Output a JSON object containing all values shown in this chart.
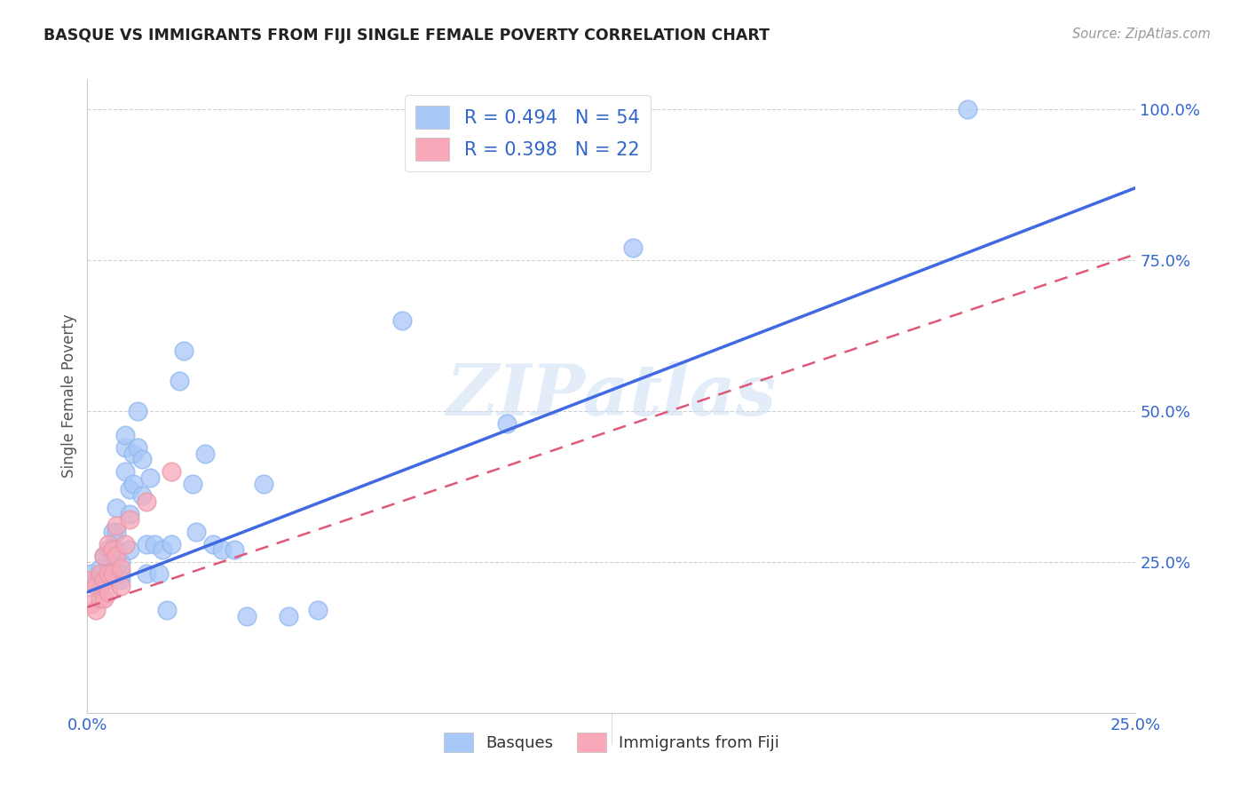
{
  "title": "BASQUE VS IMMIGRANTS FROM FIJI SINGLE FEMALE POVERTY CORRELATION CHART",
  "source": "Source: ZipAtlas.com",
  "ylabel": "Single Female Poverty",
  "xlim": [
    0.0,
    0.25
  ],
  "ylim": [
    0.0,
    1.05
  ],
  "x_ticks": [
    0.0,
    0.05,
    0.1,
    0.15,
    0.2,
    0.25
  ],
  "x_tick_labels": [
    "0.0%",
    "",
    "",
    "",
    "",
    "25.0%"
  ],
  "y_tick_labels": [
    "25.0%",
    "50.0%",
    "75.0%",
    "100.0%"
  ],
  "y_ticks": [
    0.25,
    0.5,
    0.75,
    1.0
  ],
  "legend1_label": "R = 0.494   N = 54",
  "legend2_label": "R = 0.398   N = 22",
  "legend_label_bottom1": "Basques",
  "legend_label_bottom2": "Immigrants from Fiji",
  "basque_color": "#a8c8f8",
  "fiji_color": "#f8a8b8",
  "basque_line_color": "#4169e1",
  "fiji_line_color": "#e05878",
  "watermark": "ZIPatlas",
  "basque_x": [
    0.001,
    0.002,
    0.003,
    0.003,
    0.004,
    0.004,
    0.005,
    0.005,
    0.005,
    0.006,
    0.006,
    0.006,
    0.007,
    0.007,
    0.007,
    0.008,
    0.008,
    0.008,
    0.009,
    0.009,
    0.009,
    0.01,
    0.01,
    0.01,
    0.011,
    0.011,
    0.012,
    0.012,
    0.013,
    0.013,
    0.014,
    0.014,
    0.015,
    0.016,
    0.017,
    0.018,
    0.019,
    0.02,
    0.022,
    0.023,
    0.025,
    0.026,
    0.028,
    0.03,
    0.032,
    0.035,
    0.038,
    0.042,
    0.048,
    0.055,
    0.075,
    0.1,
    0.13,
    0.21
  ],
  "basque_y": [
    0.23,
    0.22,
    0.24,
    0.21,
    0.26,
    0.23,
    0.27,
    0.24,
    0.22,
    0.3,
    0.27,
    0.24,
    0.34,
    0.3,
    0.27,
    0.25,
    0.23,
    0.22,
    0.44,
    0.4,
    0.46,
    0.37,
    0.33,
    0.27,
    0.43,
    0.38,
    0.5,
    0.44,
    0.42,
    0.36,
    0.28,
    0.23,
    0.39,
    0.28,
    0.23,
    0.27,
    0.17,
    0.28,
    0.55,
    0.6,
    0.38,
    0.3,
    0.43,
    0.28,
    0.27,
    0.27,
    0.16,
    0.38,
    0.16,
    0.17,
    0.65,
    0.48,
    0.77,
    1.0
  ],
  "fiji_x": [
    0.001,
    0.001,
    0.002,
    0.002,
    0.003,
    0.003,
    0.004,
    0.004,
    0.004,
    0.005,
    0.005,
    0.005,
    0.006,
    0.006,
    0.007,
    0.007,
    0.008,
    0.008,
    0.009,
    0.01,
    0.014,
    0.02
  ],
  "fiji_y": [
    0.22,
    0.18,
    0.21,
    0.17,
    0.23,
    0.19,
    0.26,
    0.22,
    0.19,
    0.28,
    0.23,
    0.2,
    0.27,
    0.23,
    0.31,
    0.26,
    0.24,
    0.21,
    0.28,
    0.32,
    0.35,
    0.4
  ],
  "basque_line_x0": 0.0,
  "basque_line_x1": 0.25,
  "basque_line_y0": 0.2,
  "basque_line_y1": 0.87,
  "fiji_line_x0": 0.0,
  "fiji_line_x1": 0.25,
  "fiji_line_y0": 0.175,
  "fiji_line_y1": 0.76
}
